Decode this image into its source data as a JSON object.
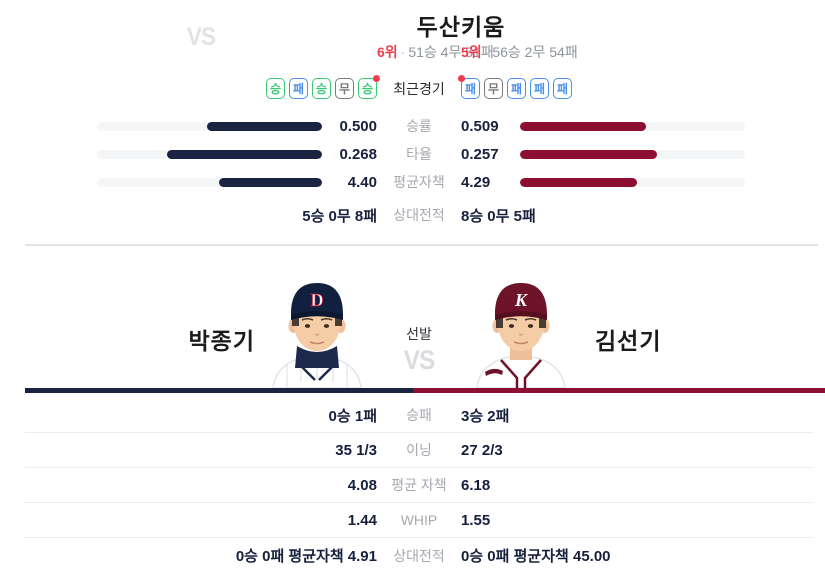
{
  "colors": {
    "home_primary": "#1a2342",
    "away_primary": "#8c0f32",
    "accent_red": "#f43b4e",
    "win_green": "#3bc876",
    "loss_blue": "#4a90e8",
    "draw_gray": "#7a7a7a",
    "label_gray": "#a5a9b0",
    "track_gray": "#f4f5f7"
  },
  "matchup": {
    "vs_label": "VS",
    "rank_separator": "·",
    "recent_games_label": "최근경기",
    "home": {
      "name": "두산",
      "rank": "6위",
      "record": "51승 4무 51패",
      "form": [
        "승",
        "패",
        "승",
        "무",
        "승"
      ],
      "latest_index": 4
    },
    "away": {
      "name": "키움",
      "rank": "5위",
      "record": "56승 2무 54패",
      "form": [
        "패",
        "무",
        "패",
        "패",
        "패"
      ],
      "latest_index": 0
    },
    "stats": [
      {
        "label": "승률",
        "home_value": "0.500",
        "away_value": "0.509",
        "home_pct": 51,
        "away_pct": 56
      },
      {
        "label": "타율",
        "home_value": "0.268",
        "away_value": "0.257",
        "home_pct": 69,
        "away_pct": 61
      },
      {
        "label": "평균자책",
        "home_value": "4.40",
        "away_value": "4.29",
        "home_pct": 46,
        "away_pct": 52
      }
    ],
    "head_to_head": {
      "label": "상대전적",
      "home_value": "5승 0무 8패",
      "away_value": "8승 0무 5패"
    }
  },
  "starters": {
    "section_label": "선발",
    "vs_label": "VS",
    "home": {
      "name": "박종기",
      "cap_letter": "D"
    },
    "away": {
      "name": "김선기",
      "cap_letter": "K"
    },
    "stats": [
      {
        "label": "승패",
        "home_value": "0승 1패",
        "away_value": "3승 2패"
      },
      {
        "label": "이닝",
        "home_value": "35 1/3",
        "away_value": "27 2/3"
      },
      {
        "label": "평균 자책",
        "home_value": "4.08",
        "away_value": "6.18"
      },
      {
        "label": "WHIP",
        "home_value": "1.44",
        "away_value": "1.55"
      },
      {
        "label": "상대전적",
        "home_value": "0승 0패 평균자책 4.91",
        "away_value": "0승 0패 평균자책 45.00"
      }
    ]
  }
}
